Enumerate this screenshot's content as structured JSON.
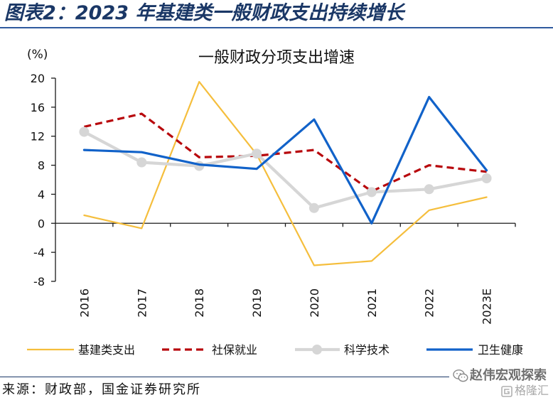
{
  "header": {
    "title": "图表2：2023 年基建类一般财政支出持续增长"
  },
  "chart_data": {
    "type": "line",
    "title": "一般财政分项支出增速",
    "ylabel": "(%)",
    "categories": [
      "2016",
      "2017",
      "2018",
      "2019",
      "2020",
      "2021",
      "2022",
      "2023E"
    ],
    "ylim": [
      -8,
      20
    ],
    "yticks": [
      20,
      16,
      12,
      8,
      4,
      0,
      -4,
      -8
    ],
    "grid": false,
    "legend_position": "bottom",
    "series": [
      {
        "name": "基建类支出",
        "color": "#F5BE3C",
        "values": [
          1.1,
          -0.7,
          19.5,
          9.5,
          -5.8,
          -5.2,
          1.8,
          3.6
        ]
      },
      {
        "name": "社保就业",
        "color": "#B8090D",
        "dashed": true,
        "values": [
          13.3,
          15.1,
          9.1,
          9.3,
          10.1,
          4.4,
          8.0,
          7.1
        ]
      },
      {
        "name": "科学技术",
        "color": "#D6D6D6",
        "markers": true,
        "values": [
          12.6,
          8.4,
          7.9,
          9.6,
          2.1,
          4.3,
          4.7,
          6.2
        ]
      },
      {
        "name": "卫生健康",
        "color": "#1162C9",
        "values": [
          10.1,
          9.8,
          8.1,
          7.5,
          14.3,
          0.0,
          17.4,
          7.3
        ]
      }
    ]
  },
  "footer": {
    "source": "来源：财政部，国金证券研究所"
  },
  "watermark": {
    "text": "赵伟宏观探索",
    "icon": "wechat-icon",
    "logo_text": "格隆汇",
    "logo_icon": "gelonghui-logo-icon"
  },
  "theme": {
    "header_color": "#1A3766",
    "rule_color": "#2F5A9E",
    "text_color": "#111111"
  }
}
